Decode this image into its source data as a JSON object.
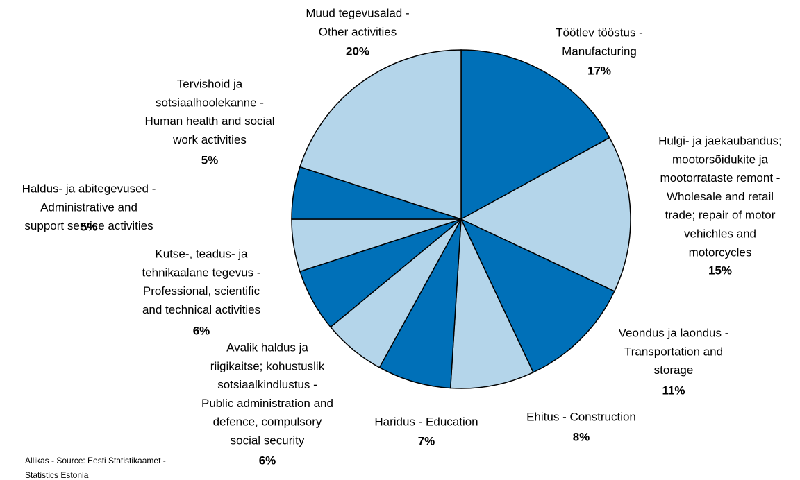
{
  "chart_data": {
    "type": "pie",
    "categories": [
      [
        "Töötlev tööstus -",
        "Manufacturing"
      ],
      [
        "Hulgi- ja jaekaubandus;",
        "mootorsõidukite ja",
        "mootorrataste remont -",
        "Wholesale and retail",
        "trade; repair of motor",
        "vehichles and",
        "motorcycles"
      ],
      [
        "Veondus ja laondus -",
        "Transportation and",
        "storage"
      ],
      [
        "Ehitus - Construction"
      ],
      [
        "Haridus - Education"
      ],
      [
        "Avalik haldus ja",
        "riigikaitse; kohustuslik",
        "sotsiaalkindlustus -",
        "Public administration and",
        "defence, compulsory",
        "social security"
      ],
      [
        "Kutse-, teadus- ja",
        "tehnikaalane tegevus -",
        "Professional, scientific",
        "and technical activities"
      ],
      [
        "Haldus- ja abitegevused -",
        "Administrative and",
        "support service activities"
      ],
      [
        "Tervishoid ja",
        "sotsiaalhoolekanne -",
        "Human health and social",
        "work activities"
      ],
      [
        "Muud tegevusalad -",
        "Other activities"
      ]
    ],
    "values": [
      17,
      15,
      11,
      8,
      7,
      6,
      6,
      5,
      5,
      20
    ],
    "value_labels": [
      "17%",
      "15%",
      "11%",
      "8%",
      "7%",
      "6%",
      "6%",
      "5%",
      "5%",
      "20%"
    ],
    "colors": [
      "#0070b8",
      "#b4d5ea",
      "#0070b8",
      "#b4d5ea",
      "#0070b8",
      "#b4d5ea",
      "#0070b8",
      "#b4d5ea",
      "#0070b8",
      "#b4d5ea"
    ],
    "source": [
      "Allikas - Source: Eesti Statistikaamet -",
      "Statistics Estonia"
    ]
  }
}
